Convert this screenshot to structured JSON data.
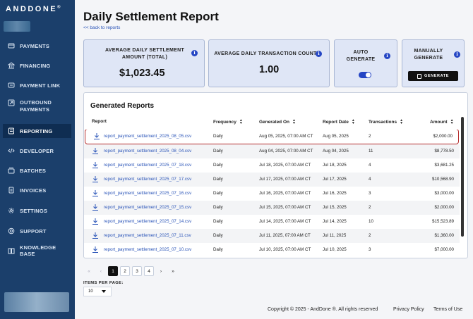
{
  "brand": {
    "name": "ANDDONE",
    "mark": "®"
  },
  "sidebar": {
    "items": [
      {
        "label": "PAYMENTS",
        "icon": "payments-icon"
      },
      {
        "label": "FINANCING",
        "icon": "bank-icon"
      },
      {
        "label": "PAYMENT LINK",
        "icon": "link-icon"
      },
      {
        "label": "OUTBOUND",
        "label2": "PAYMENTS",
        "icon": "outbound-icon"
      },
      {
        "label": "REPORTING",
        "icon": "reporting-icon",
        "active": true
      },
      {
        "label": "DEVELOPER",
        "icon": "code-icon"
      },
      {
        "label": "BATCHES",
        "icon": "batches-icon"
      },
      {
        "label": "INVOICES",
        "icon": "invoice-icon"
      },
      {
        "label": "SETTINGS",
        "icon": "gear-icon"
      },
      {
        "label": "SUPPORT",
        "icon": "support-icon"
      },
      {
        "label": "KNOWLEDGE BASE",
        "icon": "book-icon"
      }
    ]
  },
  "page": {
    "title": "Daily Settlement Report",
    "back_link": "<< back to reports"
  },
  "cards": {
    "avg_settlement": {
      "label1": "AVERAGE DAILY SETTLEMENT",
      "label2": "AMOUNT (TOTAL)",
      "value": "$1,023.45"
    },
    "avg_count": {
      "label": "AVERAGE DAILY TRANSACTION COUNT",
      "value": "1.00"
    },
    "auto": {
      "label1": "AUTO",
      "label2": "GENERATE",
      "enabled": true
    },
    "manual": {
      "label1": "MANUALLY",
      "label2": "GENERATE",
      "button": "GENERATE"
    }
  },
  "reports": {
    "title": "Generated Reports",
    "columns": {
      "report": "Report",
      "frequency": "Frequency",
      "generated_on": "Generated On",
      "report_date": "Report Date",
      "transactions": "Transactions",
      "amount": "Amount"
    },
    "rows": [
      {
        "file": "report_payment_settlement_2025_08_05.csv",
        "frequency": "Daily",
        "generated_on": "Aug 05, 2025, 07:00 AM CT",
        "report_date": "Aug 05, 2025",
        "transactions": "2",
        "amount": "$2,000.00"
      },
      {
        "file": "report_payment_settlement_2025_08_04.csv",
        "frequency": "Daily",
        "generated_on": "Aug 04, 2025, 07:00 AM CT",
        "report_date": "Aug 04, 2025",
        "transactions": "11",
        "amount": "$8,778.50"
      },
      {
        "file": "report_payment_settlement_2025_07_18.csv",
        "frequency": "Daily",
        "generated_on": "Jul 18, 2025, 07:00 AM CT",
        "report_date": "Jul 18, 2025",
        "transactions": "4",
        "amount": "$3,681.25"
      },
      {
        "file": "report_payment_settlement_2025_07_17.csv",
        "frequency": "Daily",
        "generated_on": "Jul 17, 2025, 07:00 AM CT",
        "report_date": "Jul 17, 2025",
        "transactions": "4",
        "amount": "$10,568.90"
      },
      {
        "file": "report_payment_settlement_2025_07_16.csv",
        "frequency": "Daily",
        "generated_on": "Jul 16, 2025, 07:00 AM CT",
        "report_date": "Jul 16, 2025",
        "transactions": "3",
        "amount": "$3,000.00"
      },
      {
        "file": "report_payment_settlement_2025_07_15.csv",
        "frequency": "Daily",
        "generated_on": "Jul 15, 2025, 07:00 AM CT",
        "report_date": "Jul 15, 2025",
        "transactions": "2",
        "amount": "$2,000.00"
      },
      {
        "file": "report_payment_settlement_2025_07_14.csv",
        "frequency": "Daily",
        "generated_on": "Jul 14, 2025, 07:00 AM CT",
        "report_date": "Jul 14, 2025",
        "transactions": "10",
        "amount": "$15,523.89"
      },
      {
        "file": "report_payment_settlement_2025_07_11.csv",
        "frequency": "Daily",
        "generated_on": "Jul 11, 2025, 07:00 AM CT",
        "report_date": "Jul 11, 2025",
        "transactions": "2",
        "amount": "$1,360.00"
      },
      {
        "file": "report_payment_settlement_2025_07_10.csv",
        "frequency": "Daily",
        "generated_on": "Jul 10, 2025, 07:00 AM CT",
        "report_date": "Jul 10, 2025",
        "transactions": "3",
        "amount": "$7,000.00"
      }
    ]
  },
  "pagination": {
    "first": "«",
    "prev": "‹",
    "pages": [
      "1",
      "2",
      "3",
      "4"
    ],
    "current": "1",
    "next": "›",
    "last": "»",
    "items_label": "ITEMS PER PAGE:",
    "items_value": "10"
  },
  "footer": {
    "copyright": "Copyright © 2025 - AndDone ®. All rights reserved",
    "privacy": "Privacy Policy",
    "terms": "Terms of Use"
  },
  "colors": {
    "sidebar": "#1b3f6b",
    "accent": "#2546c4",
    "highlight": "#b42a2a"
  }
}
